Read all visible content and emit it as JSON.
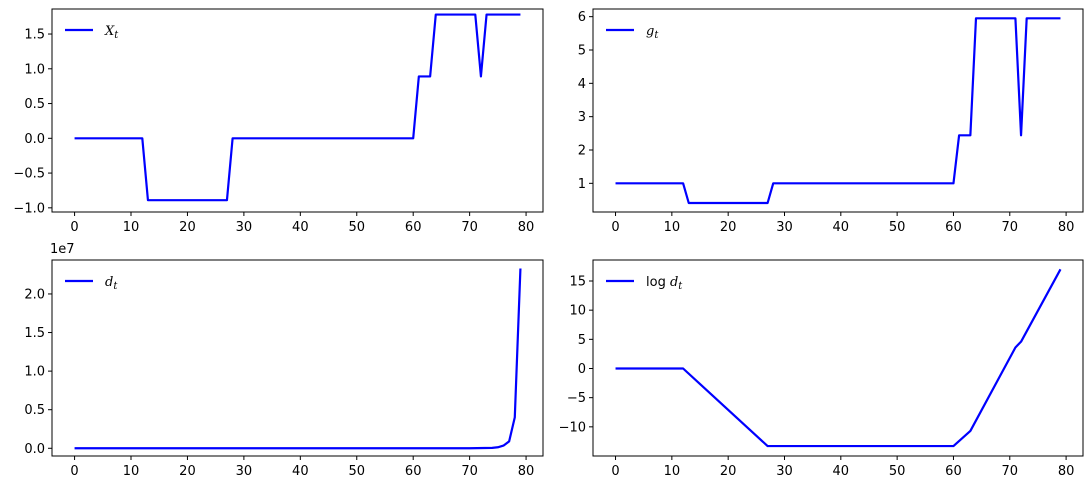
{
  "chart_data": [
    {
      "type": "line",
      "legend": {
        "label": "X",
        "sub": "t",
        "prefix": "",
        "placement": "upper-left"
      },
      "color": "#0000ff",
      "xlim": [
        -4,
        83
      ],
      "ylim": [
        -1.06,
        1.86
      ],
      "xticks": [
        0,
        10,
        20,
        30,
        40,
        50,
        60,
        70,
        80
      ],
      "yticks": [
        -1.0,
        -0.5,
        0.0,
        0.5,
        1.0,
        1.5
      ],
      "ytick_labels": [
        "−1.0",
        "−0.5",
        "0.0",
        "0.5",
        "1.0",
        "1.5"
      ],
      "offset_label": "",
      "series": [
        {
          "x": [
            0,
            12,
            13,
            27,
            28,
            60,
            61,
            63,
            64,
            71,
            72,
            73,
            79
          ],
          "y": [
            0,
            0,
            -0.89,
            -0.89,
            0,
            0,
            0.89,
            0.89,
            1.78,
            1.78,
            0.89,
            1.78,
            1.78
          ]
        }
      ]
    },
    {
      "type": "line",
      "legend": {
        "label": "g",
        "sub": "t",
        "prefix": "",
        "placement": "upper-left"
      },
      "color": "#0000ff",
      "xlim": [
        -4,
        83
      ],
      "ylim": [
        0.14,
        6.23
      ],
      "xticks": [
        0,
        10,
        20,
        30,
        40,
        50,
        60,
        70,
        80
      ],
      "yticks": [
        1,
        2,
        3,
        4,
        5,
        6
      ],
      "ytick_labels": [
        "1",
        "2",
        "3",
        "4",
        "5",
        "6"
      ],
      "offset_label": "",
      "series": [
        {
          "x": [
            0,
            12,
            13,
            27,
            28,
            60,
            61,
            63,
            64,
            71,
            72,
            73,
            79
          ],
          "y": [
            1,
            1,
            0.41,
            0.41,
            1,
            1,
            2.44,
            2.44,
            5.95,
            5.95,
            2.44,
            5.95,
            5.95
          ]
        }
      ]
    },
    {
      "type": "line",
      "legend": {
        "label": "d",
        "sub": "t",
        "prefix": "",
        "placement": "upper-left"
      },
      "color": "#0000ff",
      "xlim": [
        -4,
        83
      ],
      "ylim": [
        -0.1,
        2.44
      ],
      "xticks": [
        0,
        10,
        20,
        30,
        40,
        50,
        60,
        70,
        80
      ],
      "yticks": [
        0.0,
        0.5,
        1.0,
        1.5,
        2.0
      ],
      "ytick_labels": [
        "0.0",
        "0.5",
        "1.0",
        "1.5",
        "2.0"
      ],
      "offset_label": "1e7",
      "series": [
        {
          "x": [
            0,
            60,
            70,
            74,
            75,
            76,
            77,
            78,
            79
          ],
          "y": [
            0,
            0,
            0.0003,
            0.005,
            0.013,
            0.035,
            0.09,
            0.4,
            2.33
          ]
        }
      ]
    },
    {
      "type": "line",
      "legend": {
        "label": "d",
        "sub": "t",
        "prefix": "log ",
        "placement": "upper-left"
      },
      "color": "#0000ff",
      "xlim": [
        -4,
        83
      ],
      "ylim": [
        -15.0,
        18.6
      ],
      "xticks": [
        0,
        10,
        20,
        30,
        40,
        50,
        60,
        70,
        80
      ],
      "yticks": [
        -10,
        -5,
        0,
        5,
        10,
        15
      ],
      "ytick_labels": [
        "−10",
        "−5",
        "0",
        "5",
        "10",
        "15"
      ],
      "offset_label": "",
      "series": [
        {
          "x": [
            0,
            12,
            27,
            60,
            63,
            71,
            72,
            79
          ],
          "y": [
            0,
            0,
            -13.3,
            -13.3,
            -10.7,
            3.6,
            4.6,
            17.0
          ]
        }
      ]
    }
  ]
}
